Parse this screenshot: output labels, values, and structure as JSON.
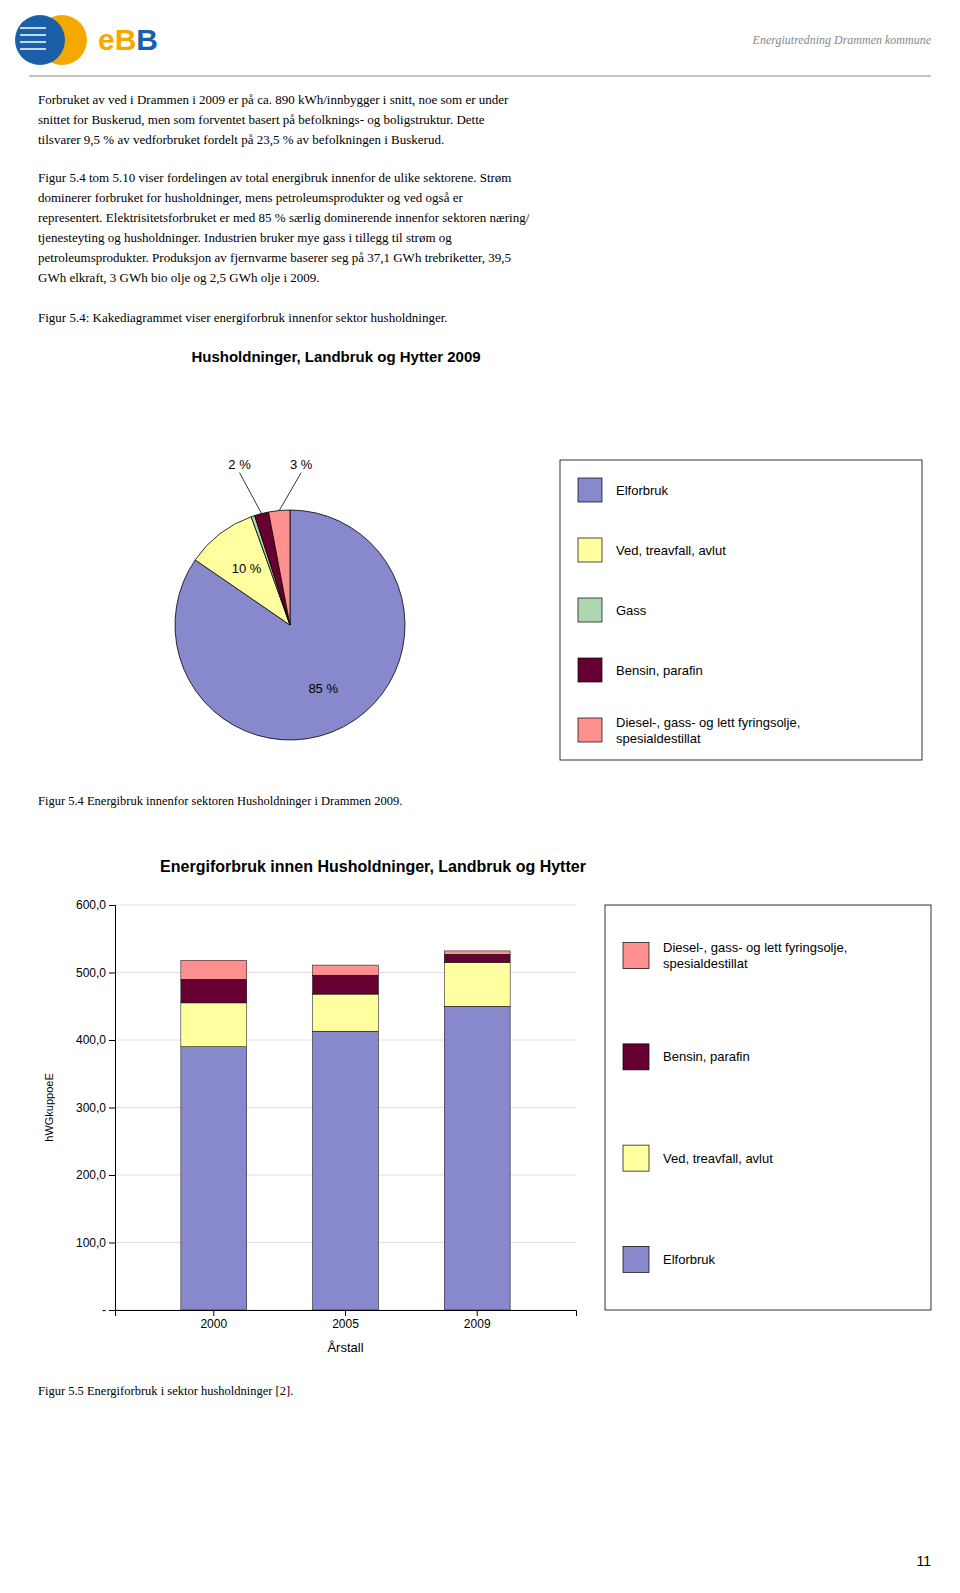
{
  "page": {
    "header_title": "Energiutredning Drammen kommune",
    "logo": {
      "texts": [
        "eB",
        "B"
      ],
      "colors": [
        "#F5A800",
        "#1a5fa8"
      ]
    },
    "paragraphs": [
      "Forbruket av ved i Drammen i 2009 er på ca. 890 kWh/innbygger i snitt, noe som er under\nsnittet for Buskerud, men som forventet basert på befolknings- og boligstruktur.  Dette\ntilsvarer 9,5 % av vedforbruket fordelt på 23,5 % av befolkningen i Buskerud.",
      "Figur 5.4 tom 5.10 viser fordelingen av total energibruk innenfor de ulike sektorene. Strøm\ndominerer forbruket for husholdninger, mens petroleumsprodukter og ved også er\nrepresentert. Elektrisitetsforbruket er med 85 % særlig dominerende innenfor sektoren næring/\ntjenesteyting og husholdninger. Industrien bruker mye gass i tillegg til strøm og\npetroleumsprodukter. Produksjon av fjernvarme baserer seg på 37,1 GWh trebriketter, 39,5\nGWh elkraft, 3 GWh bio olje og 2,5 GWh olje i 2009."
    ],
    "page_number": "11"
  },
  "chart_data": [
    {
      "type": "pie",
      "title": "Husholdninger, Landbruk og Hytter 2009",
      "caption": "Figur 5.4:  Kakediagrammet viser energiforbruk innenfor sektor husholdninger.",
      "note": "Figur 5.4 Energibruk innenfor sektoren Husholdninger i Drammen 2009.",
      "categories": [
        "Elforbruk",
        "Ved, treavfall, avlut",
        "Gass",
        "Bensin, parafin",
        "Diesel-, gass- og lett fyringsolje,\nspesialdestillat"
      ],
      "values": [
        85,
        10,
        0.5,
        2,
        3
      ],
      "value_labels": [
        "85 %",
        "10 %",
        null,
        "2 %",
        "3 %"
      ],
      "colors": [
        "#8888CC",
        "#FFFFA0",
        "#B0D8B0",
        "#660033",
        "#FF9090"
      ],
      "data_labels": true,
      "legend": "right"
    },
    {
      "type": "bar",
      "title": "Energiforbruk innen Husholdninger, Landbruk og Hytter",
      "note": "Figur 5.5 Energiforbruk i sektor husholdninger [2].",
      "categories": [
        "2000",
        "2005",
        "2009"
      ],
      "series": [
        {
          "name": "Elforbruk",
          "color": "#8888CC",
          "values": [
            390,
            413,
            450
          ]
        },
        {
          "name": "Ved, treavfall, avlut",
          "color": "#FFFFA0",
          "values": [
            65,
            55,
            65
          ]
        },
        {
          "name": "Bensin, parafin",
          "color": "#660033",
          "values": [
            35,
            28,
            12
          ]
        },
        {
          "name": "Diesel-, gass- og lett fyringsolje,\nspesialdestillat",
          "color": "#FF9090",
          "values": [
            28,
            15,
            5
          ]
        }
      ],
      "xlabel": "Årstall",
      "ylabel": "hWGkuppoeE",
      "ylim": [
        0,
        600
      ],
      "yticks": [
        {
          "value": 0,
          "label": "-"
        },
        {
          "value": 100,
          "label": "100,0"
        },
        {
          "value": 200,
          "label": "200,0"
        },
        {
          "value": 300,
          "label": "300,0"
        },
        {
          "value": 400,
          "label": "400,0"
        },
        {
          "value": 500,
          "label": "500,0"
        },
        {
          "value": 600,
          "label": "600,0"
        }
      ],
      "stacked": true,
      "grid": true,
      "legend": "right"
    }
  ]
}
